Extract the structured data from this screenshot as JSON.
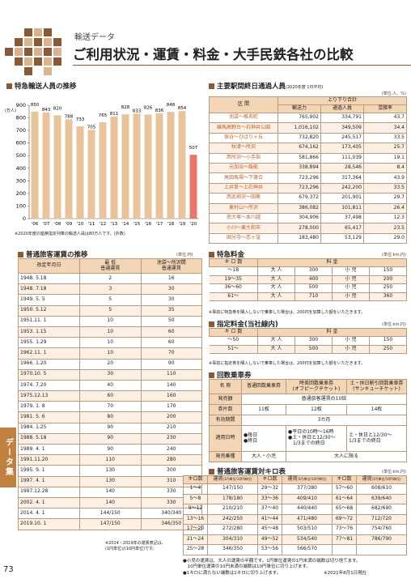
{
  "header": {
    "section": "輸送データ",
    "title": "ご利用状況・運賃・料金・大手民鉄各社の比較"
  },
  "chart_data": {
    "type": "bar",
    "title": "特急輸送人員の推移",
    "y_unit": "(万人)",
    "categories": [
      "'06",
      "'07",
      "'08",
      "'09",
      "'10",
      "'11",
      "'12",
      "'13",
      "'14",
      "'15",
      "'16",
      "'17",
      "'18",
      "'19",
      "'20"
    ],
    "values": [
      850,
      843,
      820,
      788,
      733,
      705,
      765,
      811,
      828,
      833,
      826,
      836,
      848,
      854,
      507
    ],
    "colors": [
      "#e9c49b",
      "#e9c49b",
      "#e9c49b",
      "#e9c49b",
      "#e9c49b",
      "#e9c49b",
      "#e9c49b",
      "#e9c49b",
      "#e9c49b",
      "#e9c49b",
      "#e9c49b",
      "#e9c49b",
      "#e9c49b",
      "#e9c49b",
      "#e8786c"
    ],
    "ylim": [
      0,
      900
    ],
    "yticks": [
      0,
      100,
      200,
      300,
      400,
      500,
      600,
      700,
      800,
      900
    ],
    "note": "※2020年度の座席指定列車の輸送人員は80万人です。(外数)"
  },
  "station_table": {
    "title": "主要駅間終日通過人員",
    "period": "(2020年度 1日平均)",
    "unit": "(単位:人、%)",
    "header": {
      "section": "区 間",
      "group": "上り下り合計",
      "cols": [
        "輸送力",
        "通過人員",
        "混雑率"
      ]
    },
    "rows": [
      [
        "池袋～椎名町",
        "765,902",
        "334,791",
        "43.7"
      ],
      [
        "練馬高野台～石神井公園",
        "1,016,102",
        "349,509",
        "34.4"
      ],
      [
        "保谷～ひばりヶ丘",
        "732,820",
        "245,517",
        "33.5"
      ],
      [
        "秋津～所沢",
        "674,162",
        "173,405",
        "25.7"
      ],
      [
        "西所沢～小手指",
        "581,866",
        "111,039",
        "19.1"
      ],
      [
        "元加治～飯能",
        "338,894",
        "28,546",
        "8.4"
      ],
      [
        "高田馬場～下落合",
        "723,296",
        "317,364",
        "43.9"
      ],
      [
        "上井草～上石神井",
        "723,296",
        "242,200",
        "33.5"
      ],
      [
        "西武柳沢～田無",
        "679,372",
        "201,901",
        "29.7"
      ],
      [
        "東村山～所沢",
        "386,082",
        "101,811",
        "26.4"
      ],
      [
        "南大塚～本川越",
        "304,906",
        "37,498",
        "12.3"
      ],
      [
        "小川～東大和市",
        "278,000",
        "65,417",
        "23.5"
      ],
      [
        "国分寺～恋ヶ窪",
        "183,480",
        "53,129",
        "29.0"
      ]
    ]
  },
  "fare_history": {
    "title": "普通旅客運賃の推移",
    "unit": "(単位:円)",
    "header": [
      "改定年月日",
      "最 低\n普通運賃",
      "池袋～所沢間\n普通運賃"
    ],
    "rows": [
      [
        "1948. 5.18",
        "2",
        "16"
      ],
      [
        "1948. 7.18",
        "3",
        "30"
      ],
      [
        "1949. 5. 5",
        "5",
        "30"
      ],
      [
        "1950. 5.12",
        "5",
        "35"
      ],
      [
        "1951.11. 1",
        "10",
        "50"
      ],
      [
        "1953. 1.15",
        "10",
        "60"
      ],
      [
        "1955. 1.29",
        "10",
        "60"
      ],
      [
        "1962.11. 1",
        "10",
        "70"
      ],
      [
        "1966. 1.20",
        "20",
        "90"
      ],
      [
        "1970.10. 5",
        "30",
        "110"
      ],
      [
        "1974. 7.20",
        "40",
        "140"
      ],
      [
        "1975.12.13",
        "60",
        "160"
      ],
      [
        "1979. 1. 8",
        "70",
        "170"
      ],
      [
        "1981. 5. 6",
        "80",
        "200"
      ],
      [
        "1984. 1.25",
        "90",
        "210"
      ],
      [
        "1988. 5.18",
        "90",
        "230"
      ],
      [
        "1989. 4. 1",
        "90",
        "240"
      ],
      [
        "1991.11.20",
        "110",
        "280"
      ],
      [
        "1995. 9. 1",
        "130",
        "300"
      ],
      [
        "1997. 4. 1",
        "130",
        "310"
      ],
      [
        "1997.12.28",
        "140",
        "330"
      ],
      [
        "2002. 4. 1",
        "140",
        "330"
      ],
      [
        "2014. 4. 1",
        "144/150",
        "340/340"
      ],
      [
        "2019.10. 1",
        "147/150",
        "346/350"
      ]
    ],
    "note": "※2014・2019年の運賃表記は、\n(1円単位)/(10円単位)です。"
  },
  "express_fee": {
    "title": "特急料金",
    "unit": "(単位:km,円)",
    "header": [
      "キ ロ 数",
      "料 金"
    ],
    "rows": [
      [
        "～18",
        "大 人",
        "300",
        "小 児",
        "150"
      ],
      [
        "19～35",
        "大 人",
        "400",
        "小 児",
        "200"
      ],
      [
        "36～60",
        "大 人",
        "500",
        "小 児",
        "250"
      ],
      [
        "61～",
        "大 人",
        "710",
        "小 児",
        "360"
      ]
    ],
    "note": "※事前に特急券を購入しないで乗車した場合は、200円を加算した額をいただきます。"
  },
  "reserved_fee": {
    "title": "指定料金(当社線内)",
    "unit": "(単位:km,円)",
    "header": [
      "キ ロ 数",
      "料 金"
    ],
    "rows": [
      [
        "～50",
        "大 人",
        "300",
        "小 児",
        "150"
      ],
      [
        "51～",
        "大 人",
        "500",
        "小 児",
        "250"
      ]
    ],
    "note": "※事前に指定券を購入しないで乗車した場合は、200円を加算した額をいただきます。"
  },
  "coupon": {
    "title": "回数乗車券",
    "header": [
      "名 称",
      "普通回数乗車券",
      "時差回数乗車券\n(オフピークチケット)",
      "土・休日割引回数乗車券\n(サンキューチケット)"
    ],
    "rows": [
      [
        "発売額",
        "普通旅客運賃の10倍"
      ],
      [
        "券片数",
        "11枚",
        "12枚",
        "14枚"
      ],
      [
        "有効期間",
        "3カ月"
      ],
      [
        "適用日時",
        "●毎日\n●終日",
        "●平日の10時～16時\n●土・休日と12/30～\n　1/3までの終日",
        "土・休日と12/30～\n1/3までの終日"
      ],
      [
        "発売乗種",
        "大人・小児",
        "大人に限る"
      ]
    ]
  },
  "distance_fare": {
    "title": "普通旅客運賃対キロ表",
    "unit": "(単位:km,円)",
    "header": [
      "キロ数",
      "運賃",
      "(1円単位/10円単位)"
    ],
    "columns": [
      [
        [
          "1～4",
          "147/150"
        ],
        [
          "5～8",
          "178/180"
        ],
        [
          "9～12",
          "210/210"
        ],
        [
          "13～16",
          "242/250"
        ],
        [
          "17～20",
          "272/280"
        ],
        [
          "21～24",
          "304/310"
        ],
        [
          "25～28",
          "346/350"
        ]
      ],
      [
        [
          "29～32",
          "377/380"
        ],
        [
          "33～36",
          "409/410"
        ],
        [
          "37～40",
          "440/440"
        ],
        [
          "41～44",
          "471/480"
        ],
        [
          "45～48",
          "503/510"
        ],
        [
          "49～52",
          "534/540"
        ],
        [
          "53～56",
          "566/570"
        ]
      ],
      [
        [
          "57～60",
          "608/610"
        ],
        [
          "61～64",
          "639/640"
        ],
        [
          "65～68",
          "682/690"
        ],
        [
          "69～72",
          "712/720"
        ],
        [
          "73～76",
          "754/760"
        ],
        [
          "77～81",
          "786/790"
        ]
      ]
    ]
  },
  "notes": [
    "●小児の運賃は、大人の運賃の半額です。1円単位運賃の1円未満の端数は切り捨てます。\n　10円単位運賃の10円未満の端数は10円単位に切り上げます。",
    "●1キロに満たない端数は1キロに切り上げます。"
  ],
  "date": "※2021年8月1日現在",
  "side_tab": "データ集",
  "page_number": "73"
}
